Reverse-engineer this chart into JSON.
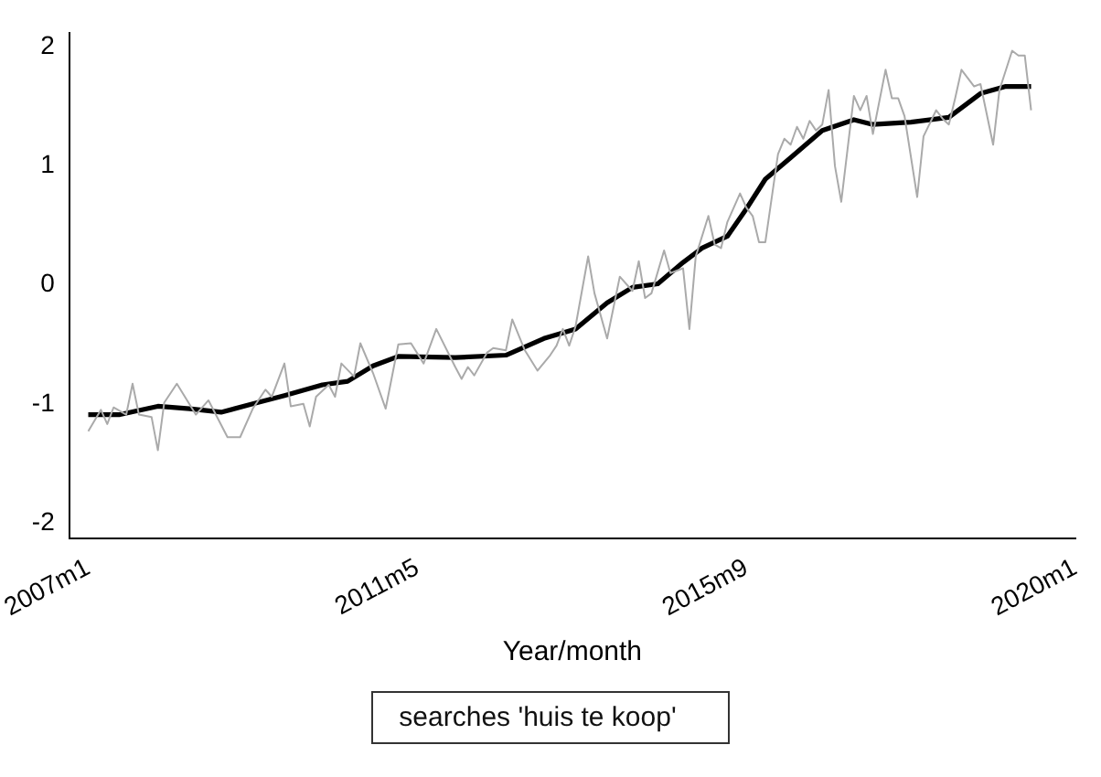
{
  "chart_data": {
    "type": "line",
    "xlabel": "Year/month",
    "annotations": [
      "searches 'huis te koop'"
    ],
    "xlim": [
      "2006-10",
      "2020-01"
    ],
    "xticks": [
      {
        "value": "2007-01",
        "label": "2007m1"
      },
      {
        "value": "2011-05",
        "label": "2011m5"
      },
      {
        "value": "2015-09",
        "label": "2015m9"
      },
      {
        "value": "2020-01",
        "label": "2020m1"
      }
    ],
    "ylim": [
      -2.13,
      2.12
    ],
    "yticks": [
      -2,
      -1,
      0,
      1,
      2
    ],
    "grid": false,
    "legend": false,
    "marker": "none",
    "series": [
      {
        "color": "#aaaaaa",
        "x": [
          "2007-01",
          "2007-03",
          "2007-04",
          "2007-05",
          "2007-07",
          "2007-08",
          "2007-09",
          "2007-11",
          "2007-12",
          "2008-01",
          "2008-03",
          "2008-06",
          "2008-08",
          "2008-11",
          "2009-01",
          "2009-03",
          "2009-05",
          "2009-06",
          "2009-08",
          "2009-09",
          "2009-11",
          "2009-12",
          "2010-01",
          "2010-03",
          "2010-04",
          "2010-05",
          "2010-07",
          "2010-08",
          "2010-10",
          "2010-12",
          "2011-02",
          "2011-04",
          "2011-06",
          "2011-08",
          "2011-11",
          "2011-12",
          "2012-01",
          "2012-02",
          "2012-04",
          "2012-05",
          "2012-07",
          "2012-08",
          "2012-10",
          "2012-12",
          "2013-02",
          "2013-03",
          "2013-04",
          "2013-05",
          "2013-06",
          "2013-08",
          "2013-09",
          "2013-11",
          "2013-12",
          "2014-01",
          "2014-03",
          "2014-04",
          "2014-05",
          "2014-06",
          "2014-08",
          "2014-09",
          "2014-11",
          "2014-12",
          "2015-01",
          "2015-03",
          "2015-04",
          "2015-05",
          "2015-06",
          "2015-08",
          "2015-09",
          "2015-10",
          "2015-11",
          "2015-12",
          "2016-02",
          "2016-03",
          "2016-04",
          "2016-05",
          "2016-06",
          "2016-07",
          "2016-08",
          "2016-09",
          "2016-10",
          "2016-11",
          "2016-12",
          "2017-02",
          "2017-03",
          "2017-04",
          "2017-05",
          "2017-07",
          "2017-08",
          "2017-09",
          "2017-10",
          "2017-12",
          "2018-01",
          "2018-03",
          "2018-04",
          "2018-05",
          "2018-06",
          "2018-07",
          "2018-09",
          "2018-10",
          "2018-12",
          "2019-01",
          "2019-03",
          "2019-04",
          "2019-05",
          "2019-06"
        ],
        "values": [
          -1.23,
          -1.05,
          -1.17,
          -1.03,
          -1.09,
          -0.83,
          -1.09,
          -1.11,
          -1.39,
          -0.99,
          -0.83,
          -1.09,
          -0.97,
          -1.28,
          -1.28,
          -1.04,
          -0.88,
          -0.94,
          -0.66,
          -1.02,
          -1.0,
          -1.19,
          -0.94,
          -0.84,
          -0.94,
          -0.66,
          -0.77,
          -0.49,
          -0.74,
          -1.04,
          -0.5,
          -0.49,
          -0.66,
          -0.37,
          -0.69,
          -0.79,
          -0.69,
          -0.76,
          -0.57,
          -0.53,
          -0.55,
          -0.29,
          -0.55,
          -0.72,
          -0.59,
          -0.51,
          -0.37,
          -0.51,
          -0.35,
          0.24,
          -0.07,
          -0.45,
          -0.19,
          0.07,
          -0.05,
          0.2,
          -0.11,
          -0.07,
          0.29,
          0.1,
          0.14,
          -0.37,
          0.24,
          0.58,
          0.34,
          0.31,
          0.53,
          0.77,
          0.65,
          0.58,
          0.36,
          0.36,
          1.1,
          1.23,
          1.18,
          1.33,
          1.23,
          1.38,
          1.3,
          1.35,
          1.64,
          1.0,
          0.7,
          1.59,
          1.47,
          1.59,
          1.27,
          1.81,
          1.57,
          1.57,
          1.42,
          0.74,
          1.25,
          1.47,
          1.4,
          1.35,
          1.57,
          1.81,
          1.67,
          1.69,
          1.18,
          1.64,
          1.97,
          1.93,
          1.93,
          1.47
        ]
      },
      {
        "color": "#000000",
        "x": [
          "2007-01",
          "2007-06",
          "2007-12",
          "2008-05",
          "2008-10",
          "2009-03",
          "2009-08",
          "2010-02",
          "2010-06",
          "2010-10",
          "2011-02",
          "2011-11",
          "2012-07",
          "2013-01",
          "2013-06",
          "2013-11",
          "2014-03",
          "2014-07",
          "2014-11",
          "2015-02",
          "2015-06",
          "2015-09",
          "2015-12",
          "2016-04",
          "2016-09",
          "2017-02",
          "2017-05",
          "2017-11",
          "2018-05",
          "2018-10",
          "2019-02",
          "2019-06"
        ],
        "values": [
          -1.09,
          -1.09,
          -1.02,
          -1.04,
          -1.07,
          -1.0,
          -0.93,
          -0.84,
          -0.81,
          -0.68,
          -0.6,
          -0.61,
          -0.59,
          -0.45,
          -0.37,
          -0.15,
          -0.02,
          0.01,
          0.19,
          0.31,
          0.41,
          0.64,
          0.89,
          1.07,
          1.3,
          1.39,
          1.35,
          1.37,
          1.41,
          1.61,
          1.67,
          1.67
        ]
      }
    ]
  }
}
